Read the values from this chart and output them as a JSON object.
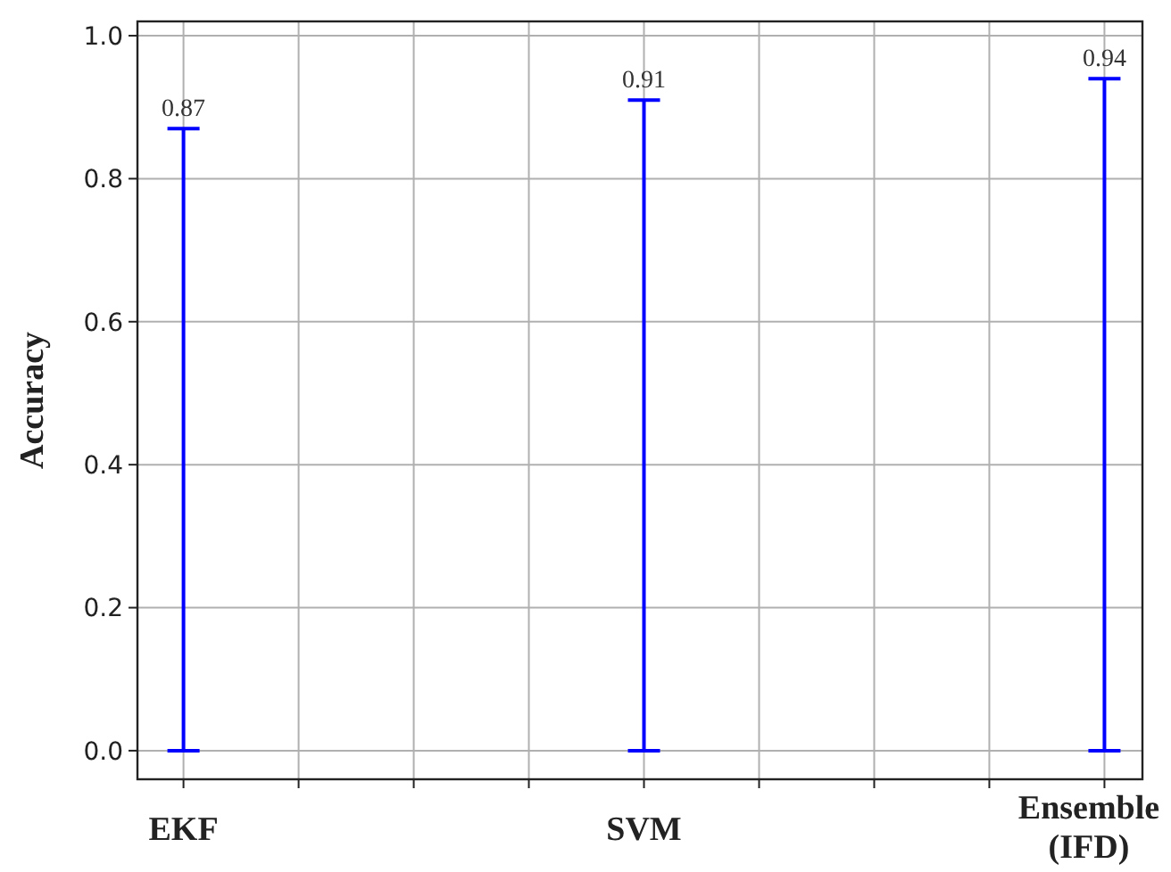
{
  "chart_data": {
    "type": "bar",
    "ylabel": "Accuracy",
    "categories": [
      "EKF",
      null,
      null,
      null,
      "SVM",
      null,
      null,
      null,
      "Ensemble\n(IFD)"
    ],
    "series": [
      {
        "color": "#0000ff",
        "values": [
          0.87,
          null,
          null,
          null,
          0.91,
          null,
          null,
          null,
          0.94
        ]
      }
    ],
    "ylim": [
      -0.04,
      1.02
    ],
    "yticks": [
      {
        "value": 0,
        "label": "0.0"
      },
      0.2,
      0.4,
      0.6,
      0.8,
      {
        "value": 1,
        "label": "1.0"
      }
    ],
    "grid": true,
    "data_labels": true
  }
}
